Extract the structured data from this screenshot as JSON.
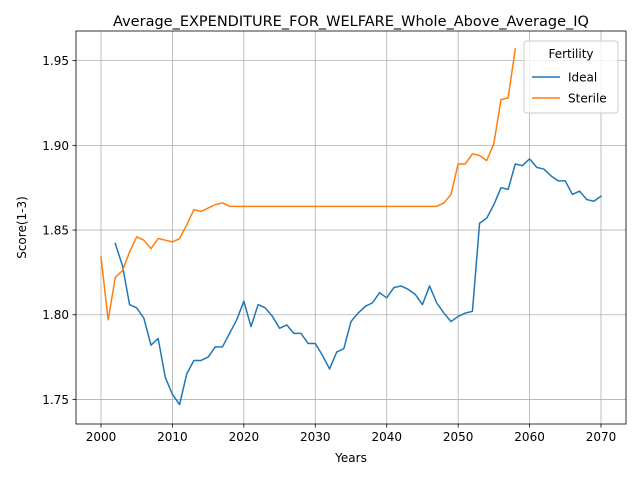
{
  "chart_data": {
    "type": "line",
    "title": "Average_EXPENDITURE_FOR_WELFARE_Whole_Above_Average_IQ",
    "xlabel": "Years",
    "ylabel": "Score(1-3)",
    "xlim": [
      1996.5,
      2073.5
    ],
    "ylim": [
      1.7355,
      1.9675
    ],
    "xticks": [
      2000,
      2010,
      2020,
      2030,
      2040,
      2050,
      2060,
      2070
    ],
    "yticks": [
      1.75,
      1.8,
      1.85,
      1.9,
      1.95
    ],
    "ytick_labels": [
      "1.75",
      "1.80",
      "1.85",
      "1.90",
      "1.95"
    ],
    "grid": true,
    "legend": {
      "title": "Fertility",
      "placement": "top-right"
    },
    "series": [
      {
        "name": "Ideal",
        "color": "#1f77b4",
        "x": [
          2002,
          2003,
          2004,
          2005,
          2006,
          2007,
          2008,
          2009,
          2010,
          2011,
          2012,
          2013,
          2014,
          2015,
          2016,
          2017,
          2018,
          2019,
          2020,
          2021,
          2022,
          2023,
          2024,
          2025,
          2026,
          2027,
          2028,
          2029,
          2030,
          2031,
          2032,
          2033,
          2034,
          2035,
          2036,
          2037,
          2038,
          2039,
          2040,
          2041,
          2042,
          2043,
          2044,
          2045,
          2046,
          2047,
          2048,
          2049,
          2050,
          2051,
          2052,
          2053,
          2054,
          2055,
          2056,
          2057,
          2058,
          2059,
          2060,
          2061,
          2062,
          2063,
          2064,
          2065,
          2066,
          2067,
          2068,
          2069,
          2070
        ],
        "values": [
          1.842,
          1.829,
          1.806,
          1.804,
          1.798,
          1.782,
          1.786,
          1.763,
          1.753,
          1.747,
          1.765,
          1.773,
          1.773,
          1.775,
          1.781,
          1.781,
          1.789,
          1.797,
          1.808,
          1.793,
          1.806,
          1.804,
          1.799,
          1.792,
          1.794,
          1.789,
          1.789,
          1.783,
          1.783,
          1.776,
          1.768,
          1.778,
          1.78,
          1.796,
          1.801,
          1.805,
          1.807,
          1.813,
          1.81,
          1.816,
          1.817,
          1.815,
          1.812,
          1.806,
          1.817,
          1.807,
          1.801,
          1.796,
          1.799,
          1.801,
          1.802,
          1.854,
          1.857,
          1.865,
          1.875,
          1.874,
          1.889,
          1.888,
          1.892,
          1.887,
          1.886,
          1.882,
          1.879,
          1.879,
          1.871,
          1.873,
          1.868,
          1.867,
          1.87
        ]
      },
      {
        "name": "Sterile",
        "color": "#ff7f0e",
        "x": [
          2000,
          2001,
          2002,
          2003,
          2004,
          2005,
          2006,
          2007,
          2008,
          2009,
          2010,
          2011,
          2012,
          2013,
          2014,
          2015,
          2016,
          2017,
          2018,
          2019,
          2020,
          2021,
          2022,
          2023,
          2024,
          2025,
          2026,
          2027,
          2028,
          2029,
          2030,
          2031,
          2032,
          2033,
          2034,
          2035,
          2036,
          2037,
          2038,
          2039,
          2040,
          2041,
          2042,
          2043,
          2044,
          2045,
          2046,
          2047,
          2048,
          2049,
          2050,
          2051,
          2052,
          2053,
          2054,
          2055,
          2056,
          2057,
          2058
        ],
        "values": [
          1.834,
          1.797,
          1.822,
          1.826,
          1.837,
          1.846,
          1.844,
          1.839,
          1.845,
          1.844,
          1.843,
          1.845,
          1.853,
          1.862,
          1.861,
          1.863,
          1.865,
          1.866,
          1.864,
          1.864,
          1.864,
          1.864,
          1.864,
          1.864,
          1.864,
          1.864,
          1.864,
          1.864,
          1.864,
          1.864,
          1.864,
          1.864,
          1.864,
          1.864,
          1.864,
          1.864,
          1.864,
          1.864,
          1.864,
          1.864,
          1.864,
          1.864,
          1.864,
          1.864,
          1.864,
          1.864,
          1.864,
          1.864,
          1.866,
          1.871,
          1.889,
          1.889,
          1.895,
          1.894,
          1.891,
          1.901,
          1.927,
          1.928,
          1.957
        ]
      }
    ]
  }
}
